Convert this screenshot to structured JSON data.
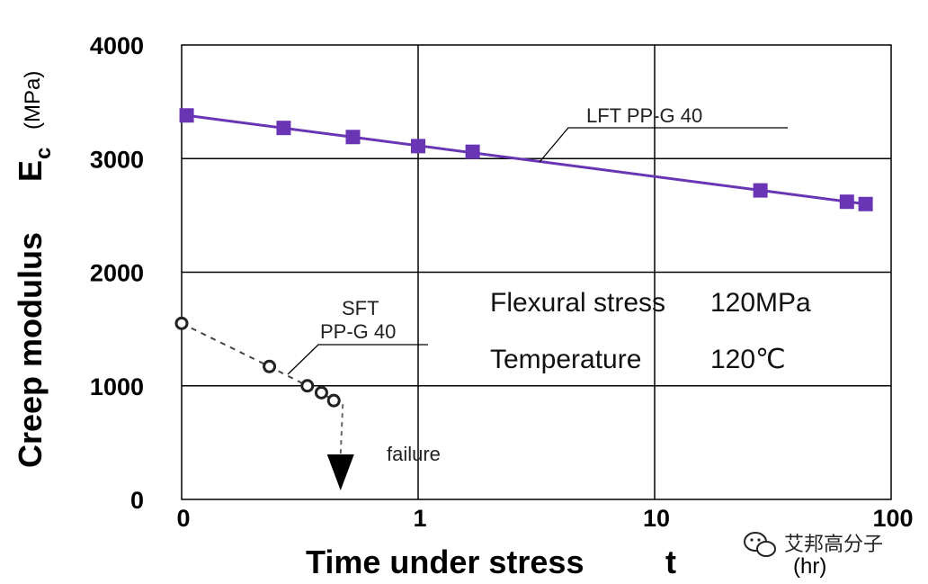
{
  "chart_data": {
    "type": "line",
    "xlabel": "Time under stress",
    "xlabel_symbol": "t",
    "xunit": "(hr)",
    "ylabel": "Creep modulus",
    "ylabel_symbol": "E",
    "ylabel_subscript": "c",
    "yunit": "(MPa)",
    "x_scale": "log",
    "x_ticks": [
      {
        "label": "0",
        "value": 0.1
      },
      {
        "label": "1",
        "value": 1
      },
      {
        "label": "10",
        "value": 10
      },
      {
        "label": "100",
        "value": 100
      }
    ],
    "xlim": [
      0.1,
      100
    ],
    "ylim": [
      0,
      4000
    ],
    "y_ticks": [
      {
        "label": "0",
        "value": 0
      },
      {
        "label": "1000",
        "value": 1000
      },
      {
        "label": "2000",
        "value": 2000
      },
      {
        "label": "3000",
        "value": 3000
      },
      {
        "label": "4000",
        "value": 4000
      }
    ],
    "grid": true,
    "series": [
      {
        "name": "LFT PP-G40",
        "label_text": "LFT    PP-G 40",
        "color": "#6a35b5",
        "marker": "square",
        "line_style": "solid",
        "x": [
          0.105,
          0.27,
          0.53,
          1.0,
          1.7,
          28,
          65,
          78
        ],
        "y": [
          3380,
          3270,
          3190,
          3110,
          3060,
          2720,
          2620,
          2600
        ]
      },
      {
        "name": "SFT PP-G40",
        "label_text_line1": "SFT",
        "label_text_line2": "PP-G 40",
        "color": "#444444",
        "marker": "circle",
        "line_style": "dashed",
        "x": [
          0.1,
          0.235,
          0.34,
          0.39,
          0.44
        ],
        "y": [
          1550,
          1170,
          1000,
          940,
          870
        ]
      }
    ],
    "annotations": {
      "stress_label": "Flexural stress",
      "stress_value": "120MPa",
      "temp_label": "Temperature",
      "temp_value": "120℃",
      "failure_label": "failure",
      "failure_x": 0.47
    }
  },
  "watermark": {
    "text": "艾邦高分子",
    "icon": "wechat-icon"
  }
}
